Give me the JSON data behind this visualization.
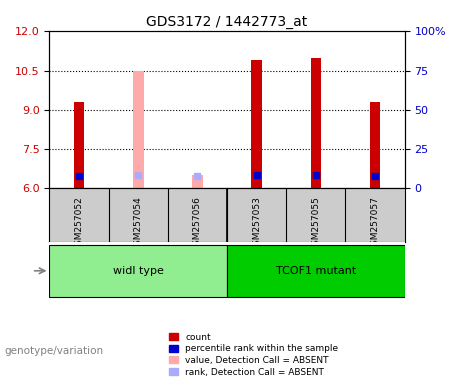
{
  "title": "GDS3172 / 1442773_at",
  "samples": [
    "GSM257052",
    "GSM257054",
    "GSM257056",
    "GSM257053",
    "GSM257055",
    "GSM257057"
  ],
  "groups": [
    {
      "name": "widl type",
      "color": "#90ee90",
      "samples": [
        0,
        1,
        2
      ]
    },
    {
      "name": "TCOF1 mutant",
      "color": "#00cc00",
      "samples": [
        3,
        4,
        5
      ]
    }
  ],
  "count_values": [
    9.3,
    null,
    null,
    10.9,
    11.0,
    9.3
  ],
  "count_color": "#cc0000",
  "absent_value_bars": [
    null,
    10.5,
    6.5,
    null,
    null,
    null
  ],
  "absent_value_color": "#ffaaaa",
  "percentile_rank": [
    7.75,
    null,
    null,
    8.2,
    8.5,
    7.5
  ],
  "percentile_color": "#0000cc",
  "absent_rank": [
    null,
    8.2,
    7.45,
    null,
    null,
    null
  ],
  "absent_rank_color": "#aaaaff",
  "ylim_left": [
    6,
    12
  ],
  "ylim_right": [
    0,
    100
  ],
  "yticks_left": [
    6,
    7.5,
    9,
    10.5,
    12
  ],
  "yticks_right": [
    0,
    25,
    50,
    75,
    100
  ],
  "bar_width": 0.18,
  "absent_bar_width": 0.18,
  "legend_items": [
    {
      "label": "count",
      "color": "#cc0000",
      "type": "rect"
    },
    {
      "label": "percentile rank within the sample",
      "color": "#0000cc",
      "type": "rect"
    },
    {
      "label": "value, Detection Call = ABSENT",
      "color": "#ffaaaa",
      "type": "rect"
    },
    {
      "label": "rank, Detection Call = ABSENT",
      "color": "#aaaaff",
      "type": "rect"
    }
  ],
  "genotype_label": "genotype/variation",
  "plot_bg": "#ffffff",
  "grid_color": "#000000",
  "sample_box_color": "#cccccc"
}
